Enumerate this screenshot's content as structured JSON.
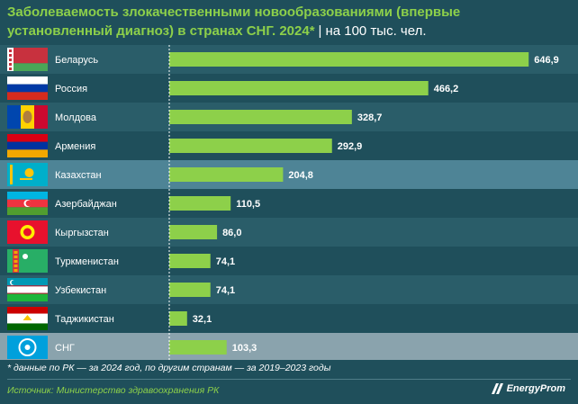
{
  "title": {
    "main": "Заболеваемость злокачественными новообразованиями (впервые установленный диагноз) в странах СНГ. 2024*",
    "separator": "|",
    "unit": "на 100 тыс. чел."
  },
  "chart_data": {
    "type": "bar",
    "orientation": "horizontal",
    "categories": [
      "Беларусь",
      "Россия",
      "Молдова",
      "Армения",
      "Казахстан",
      "Азербайджан",
      "Кыргызстан",
      "Туркменистан",
      "Узбекистан",
      "Таджикистан",
      "СНГ"
    ],
    "values": [
      646.9,
      466.2,
      328.7,
      292.9,
      204.8,
      110.5,
      86.0,
      74.1,
      74.1,
      32.1,
      103.3
    ],
    "value_labels": [
      "646,9",
      "466,2",
      "328,7",
      "292,9",
      "204,8",
      "110,5",
      "86,0",
      "74,1",
      "74,1",
      "32,1",
      "103,3"
    ],
    "highlighted": [
      "Казахстан",
      "СНГ"
    ],
    "xlim": [
      0,
      700
    ],
    "bar_color": "#8dd04a",
    "grid": false
  },
  "flags": [
    "belarus-flag",
    "russia-flag",
    "moldova-flag",
    "armenia-flag",
    "kazakhstan-flag",
    "azerbaijan-flag",
    "kyrgyzstan-flag",
    "turkmenistan-flag",
    "uzbekistan-flag",
    "tajikistan-flag",
    "cis-emblem"
  ],
  "colors": {
    "background": "#1f4f5b",
    "row_band": "#2a5d69",
    "highlight_row": "#4e8496",
    "cis_row": "#8aa3ad",
    "accent": "#8dd04a"
  },
  "footnote": "* данные по РК — за 2024 год, по другим странам — за 2019–2023 годы",
  "source": "Источник: Министерство здравоохранения РК",
  "logo": "EnergyProm"
}
